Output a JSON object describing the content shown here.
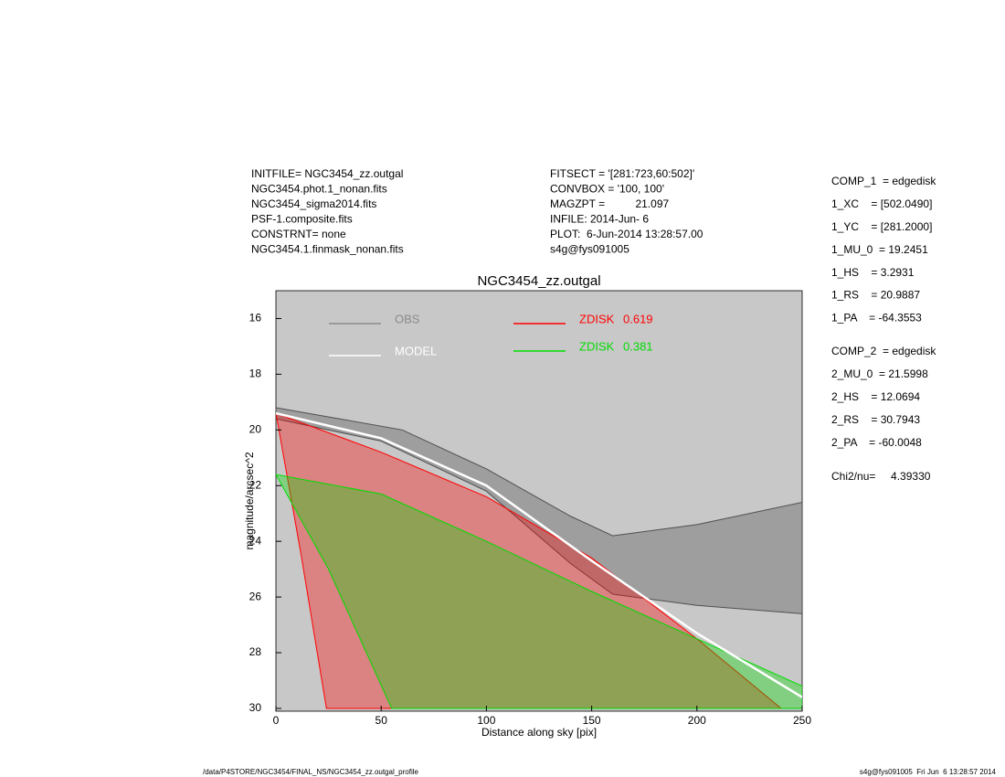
{
  "chart_data": {
    "type": "area",
    "title": "NGC3454_zz.outgal",
    "xlabel": "Distance along sky [pix]",
    "ylabel": "magnitude/arcsec^2",
    "xlim": [
      0,
      250
    ],
    "ylim": [
      30.1,
      15
    ],
    "xticks": [
      0,
      50,
      100,
      150,
      200,
      250
    ],
    "yticks": [
      16,
      18,
      20,
      22,
      24,
      26,
      28,
      30
    ],
    "background": "#c8c8c8",
    "series": [
      {
        "name": "OBS",
        "color": "#505050",
        "legend_color": "#8a8a8a",
        "x": [
          0,
          30,
          60,
          100,
          140,
          160,
          200,
          250,
          250,
          200,
          160,
          140,
          100,
          50,
          0
        ],
        "values": [
          19.2,
          19.6,
          20.0,
          21.4,
          23.1,
          23.8,
          23.4,
          22.6,
          26.6,
          26.3,
          25.9,
          24.8,
          22.2,
          20.4,
          19.6
        ]
      },
      {
        "name": "ZDISK",
        "fraction": 0.619,
        "color": "#ff0000",
        "x": [
          0,
          50,
          100,
          150,
          200,
          240,
          24,
          12
        ],
        "values": [
          19.4,
          20.8,
          22.4,
          24.6,
          27.5,
          30,
          30,
          24.5
        ]
      },
      {
        "name": "ZDISK",
        "fraction": 0.381,
        "color": "#00dd00",
        "x": [
          0,
          50,
          100,
          150,
          200,
          250,
          250,
          55,
          25
        ],
        "values": [
          21.6,
          22.3,
          24.0,
          25.8,
          27.5,
          29.2,
          30,
          30,
          25
        ]
      },
      {
        "name": "MODEL",
        "color": "#ffffff",
        "x": [
          0,
          50,
          100,
          150,
          200,
          250
        ],
        "values": [
          19.4,
          20.3,
          22.0,
          24.7,
          27.3,
          29.6
        ]
      }
    ]
  },
  "header_left": [
    "INITFILE= NGC3454_zz.outgal",
    "NGC3454.phot.1_nonan.fits",
    "NGC3454_sigma2014.fits",
    "PSF-1.composite.fits",
    "CONSTRNT= none",
    "NGC3454.1.finmask_nonan.fits"
  ],
  "header_center": [
    "FITSECT = '[281:723,60:502]'",
    "CONVBOX = '100, 100'",
    "MAGZPT =          21.097",
    "INFILE: 2014-Jun- 6",
    "PLOT:  6-Jun-2014 13:28:57.00",
    "s4g@fys091005"
  ],
  "comp_1": [
    "COMP_1  = edgedisk",
    "1_XC    = [502.0490]",
    "1_YC    = [281.2000]",
    "1_MU_0  = 19.2451",
    "1_HS    = 3.2931",
    "1_RS    = 20.9887",
    "1_PA    = -64.3553"
  ],
  "comp_2": [
    "COMP_2  = edgedisk",
    "2_MU_0  = 21.5998",
    "2_HS    = 12.0694",
    "2_RS    = 30.7943",
    "2_PA    = -60.0048"
  ],
  "chi2": "Chi2/nu=     4.39330",
  "footer_left": "/data/P4STORE/NGC3454/FINAL_NS/NGC3454_zz.outgal_profile",
  "footer_right": "s4g@fys091005  Fri Jun  6 13:28:57 2014"
}
